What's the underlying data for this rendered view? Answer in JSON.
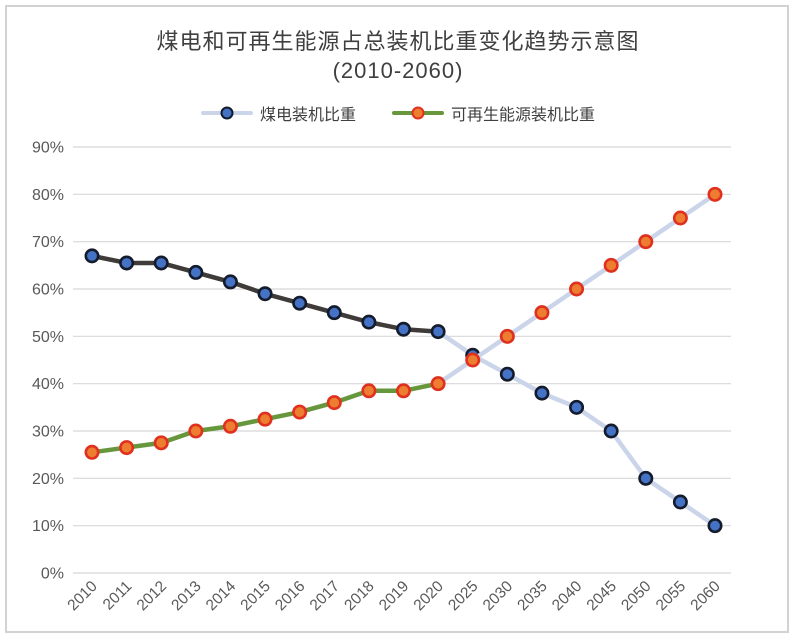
{
  "title": {
    "line1": "煤电和可再生能源占总装机比重变化趋势示意图",
    "line2": "(2010-2060)"
  },
  "chart_data": {
    "type": "line",
    "title": "煤电和可再生能源占总装机比重变化趋势示意图 (2010-2060)",
    "categories": [
      "2010",
      "2011",
      "2012",
      "2013",
      "2014",
      "2015",
      "2016",
      "2017",
      "2018",
      "2019",
      "2020",
      "2025",
      "2030",
      "2035",
      "2040",
      "2045",
      "2050",
      "2055",
      "2060"
    ],
    "series": [
      {
        "name": "煤电装机比重",
        "values": [
          67,
          65.5,
          65.5,
          63.5,
          61.5,
          59,
          57,
          55,
          53,
          51.5,
          51,
          46,
          42,
          38,
          35,
          30,
          20,
          15,
          10
        ],
        "history_line_color": "#3e3b39",
        "forecast_line_color": "#cbd5ea",
        "marker_fill": "#4472c4",
        "marker_stroke": "#141b2c",
        "legend_line_color": "#cbd5ea"
      },
      {
        "name": "可再生能源装机比重",
        "values": [
          25.5,
          26.5,
          27.5,
          30,
          31,
          32.5,
          34,
          36,
          38.5,
          38.5,
          40,
          45,
          50,
          55,
          60,
          65,
          70,
          75,
          80
        ],
        "history_line_color": "#67973d",
        "forecast_line_color": "#cbd5ea",
        "marker_fill": "#ed7d31",
        "marker_stroke": "#e0301e",
        "legend_line_color": "#67973d"
      }
    ],
    "forecast_start_index": 10,
    "ylim": [
      0,
      90
    ],
    "y_tick_step": 10,
    "y_tick_labels": [
      "0%",
      "10%",
      "20%",
      "30%",
      "40%",
      "50%",
      "60%",
      "70%",
      "80%",
      "90%"
    ],
    "grid": true,
    "legend_position": "top",
    "xlabel": "",
    "ylabel": ""
  },
  "colors": {
    "grid_line": "#d8d8d8",
    "axis_text": "#595959",
    "title_text": "#3f3f3f",
    "frame_border": "#d2d2d2"
  }
}
